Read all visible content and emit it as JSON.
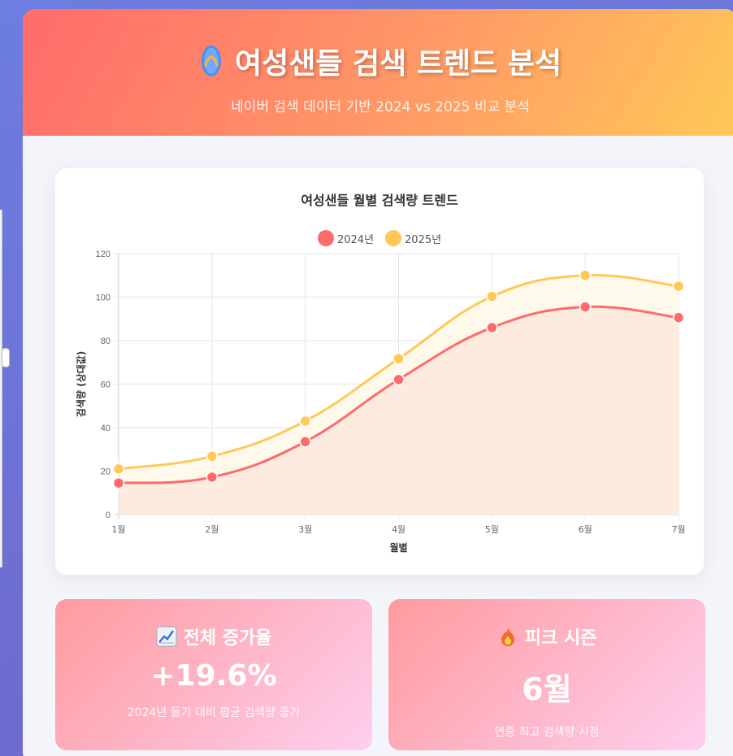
{
  "header": {
    "title": "여성샌들 검색 트렌드 분석",
    "subtitle": "네이버 검색 데이터 기반 2024 vs 2025 비교 분석",
    "icon": "sandal-icon"
  },
  "chart_data": {
    "type": "line",
    "title": "여성샌들 월별 검색량 트렌드",
    "xlabel": "월별",
    "ylabel": "검색량 (상대값)",
    "categories": [
      "1월",
      "2월",
      "3월",
      "4월",
      "5월",
      "6월",
      "7월"
    ],
    "y_ticks": [
      "0",
      "20",
      "40",
      "60",
      "80",
      "100",
      "120"
    ],
    "ylim": [
      0,
      120
    ],
    "grid": true,
    "legend_position": "top-center",
    "series": [
      {
        "name": "2024년",
        "values": [
          14.5,
          17.2,
          33.5,
          62.1,
          86.0,
          95.5,
          90.6
        ],
        "color": "#ff6b6b",
        "fill": "#fdebe0"
      },
      {
        "name": "2025년",
        "values": [
          21.0,
          26.8,
          43.0,
          71.7,
          100.3,
          110.0,
          105.0
        ],
        "color": "#ffc857",
        "fill": "#fff9ec"
      }
    ]
  },
  "stats": {
    "growth": {
      "icon": "chart-increasing-icon",
      "title": "전체 증가율",
      "value": "+19.6%",
      "desc": "2024년 동기 대비 평균 검색량 증가"
    },
    "peak": {
      "icon": "fire-icon",
      "title": "피크 시즌",
      "value": "6월",
      "desc": "연중 최고 검색량 시점"
    }
  }
}
